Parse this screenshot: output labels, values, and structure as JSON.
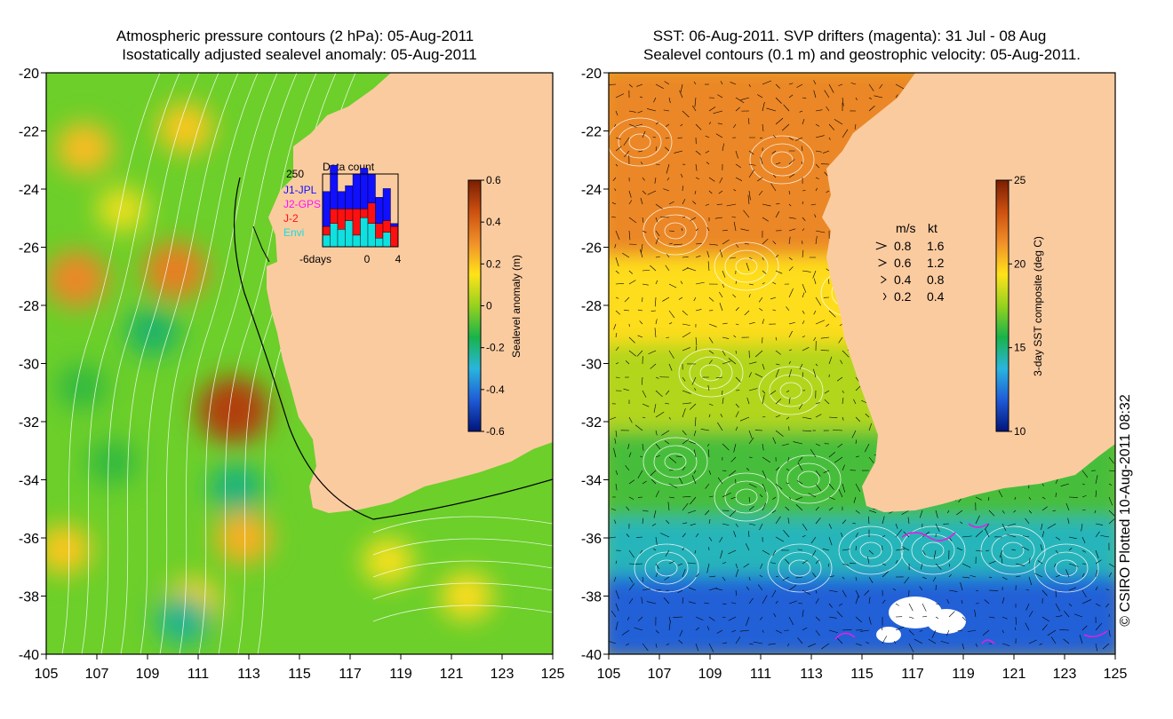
{
  "chart_data": [
    {
      "type": "heatmap",
      "title": "Atmospheric pressure contours (2 hPa): 05-Aug-2011",
      "subtitle": "Isostatically adjusted sealevel anomaly: 05-Aug-2011",
      "xlim": [
        105,
        125
      ],
      "ylim": [
        -40,
        -20
      ],
      "xticks": [
        105,
        107,
        109,
        111,
        113,
        115,
        117,
        119,
        121,
        123,
        125
      ],
      "yticks": [
        -20,
        -22,
        -24,
        -26,
        -28,
        -30,
        -32,
        -34,
        -36,
        -38,
        -40
      ],
      "colorbar": {
        "label": "Sealevel anomaly (m)",
        "range": [
          -0.6,
          0.6
        ],
        "ticks": [
          "0.6",
          "0.4",
          "0.2",
          "0",
          "-0.2",
          "-0.4",
          "-0.6"
        ],
        "colors": [
          "#00147a",
          "#1f5bd6",
          "#29b5de",
          "#19b34a",
          "#96d21e",
          "#ffe21a",
          "#f0902a",
          "#cc5010",
          "#7a1e02"
        ]
      },
      "blobs": [
        {
          "lon": 106.2,
          "lat": -27.1,
          "value": 0.32
        },
        {
          "lon": 110.1,
          "lat": -26.8,
          "value": 0.34
        },
        {
          "lon": 112.4,
          "lat": -31.6,
          "value": 0.5
        },
        {
          "lon": 106.5,
          "lat": -22.6,
          "value": 0.22
        },
        {
          "lon": 110.5,
          "lat": -21.9,
          "value": 0.2
        },
        {
          "lon": 112.8,
          "lat": -36.0,
          "value": 0.24
        },
        {
          "lon": 110.8,
          "lat": -38.2,
          "value": 0.18
        },
        {
          "lon": 105.7,
          "lat": -36.4,
          "value": 0.2
        },
        {
          "lon": 108.0,
          "lat": -24.7,
          "value": 0.12
        },
        {
          "lon": 109.2,
          "lat": -28.9,
          "value": -0.18
        },
        {
          "lon": 106.4,
          "lat": -30.8,
          "value": -0.12
        },
        {
          "lon": 112.5,
          "lat": -34.3,
          "value": -0.2
        },
        {
          "lon": 110.4,
          "lat": -38.8,
          "value": -0.22
        },
        {
          "lon": 107.6,
          "lat": -33.4,
          "value": -0.12
        },
        {
          "lon": 118.5,
          "lat": -36.8,
          "value": 0.14
        },
        {
          "lon": 121.6,
          "lat": -38.0,
          "value": 0.16
        }
      ],
      "inset": {
        "title": "Data count",
        "ymax_label": "250",
        "series": [
          "J1-JPL",
          "J2-GPS",
          "J-2",
          "Envi"
        ],
        "series_colors": [
          "#1010ff",
          "#ff10ff",
          "#ff1010",
          "#10e0e0"
        ],
        "x_ticks": [
          "-6days",
          "0",
          "4"
        ],
        "bars": [
          {
            "envi": 40,
            "j2": 30,
            "j1": 120
          },
          {
            "envi": 80,
            "j2": 50,
            "j1": 150
          },
          {
            "envi": 60,
            "j2": 70,
            "j1": 60
          },
          {
            "envi": 90,
            "j2": 40,
            "j1": 80
          },
          {
            "envi": 40,
            "j2": 90,
            "j1": 120
          },
          {
            "envi": 100,
            "j2": 30,
            "j1": 140
          },
          {
            "envi": 80,
            "j2": 70,
            "j1": 100
          },
          {
            "envi": 30,
            "j2": 50,
            "j1": 90
          },
          {
            "envi": 50,
            "j2": 40,
            "j1": 110
          },
          {
            "envi": 0,
            "j2": 70,
            "j1": 10
          }
        ]
      }
    },
    {
      "type": "heatmap",
      "title": "SST: 06-Aug-2011. SVP drifters (magenta): 31 Jul - 08 Aug",
      "subtitle": "Sealevel contours (0.1 m) and geostrophic velocity: 05-Aug-2011.",
      "xlim": [
        105,
        125
      ],
      "ylim": [
        -40,
        -20
      ],
      "xticks": [
        105,
        107,
        109,
        111,
        113,
        115,
        117,
        119,
        121,
        123,
        125
      ],
      "yticks": [
        -20,
        -22,
        -24,
        -26,
        -28,
        -30,
        -32,
        -34,
        -36,
        -38,
        -40
      ],
      "colorbar": {
        "label": "3-day SST composite (deg C)",
        "range": [
          10,
          25
        ],
        "ticks": [
          "25",
          "20",
          "15",
          "10"
        ],
        "colors": [
          "#00147a",
          "#1f5bd6",
          "#29b5de",
          "#19b34a",
          "#96d21e",
          "#ffe21a",
          "#f0902a",
          "#cc5010",
          "#7a1e02"
        ]
      },
      "sst_bands": [
        {
          "lat_top": -20,
          "lat_bottom": -26.5,
          "value": 21.5
        },
        {
          "lat_top": -26.5,
          "lat_bottom": -29.5,
          "value": 19.5
        },
        {
          "lat_top": -29.5,
          "lat_bottom": -32.5,
          "value": 18.0
        },
        {
          "lat_top": -32.5,
          "lat_bottom": -35.5,
          "value": 16.3
        },
        {
          "lat_top": -35.5,
          "lat_bottom": -37.5,
          "value": 14.2
        },
        {
          "lat_top": -37.5,
          "lat_bottom": -40,
          "value": 12.0
        }
      ],
      "velocity_legend": {
        "headers": [
          "m/s",
          "kt"
        ],
        "rows": [
          {
            "ms": "0.8",
            "kt": "1.6"
          },
          {
            "ms": "0.6",
            "kt": "1.2"
          },
          {
            "ms": "0.4",
            "kt": "0.8"
          },
          {
            "ms": "0.2",
            "kt": "0.4"
          }
        ]
      }
    }
  ],
  "credit": "© CSIRO Plotted 10-Aug-2011 08:32",
  "colors": {
    "land": "#fbcba0",
    "contour": "#ffffff",
    "drifter": "#e020e0"
  }
}
